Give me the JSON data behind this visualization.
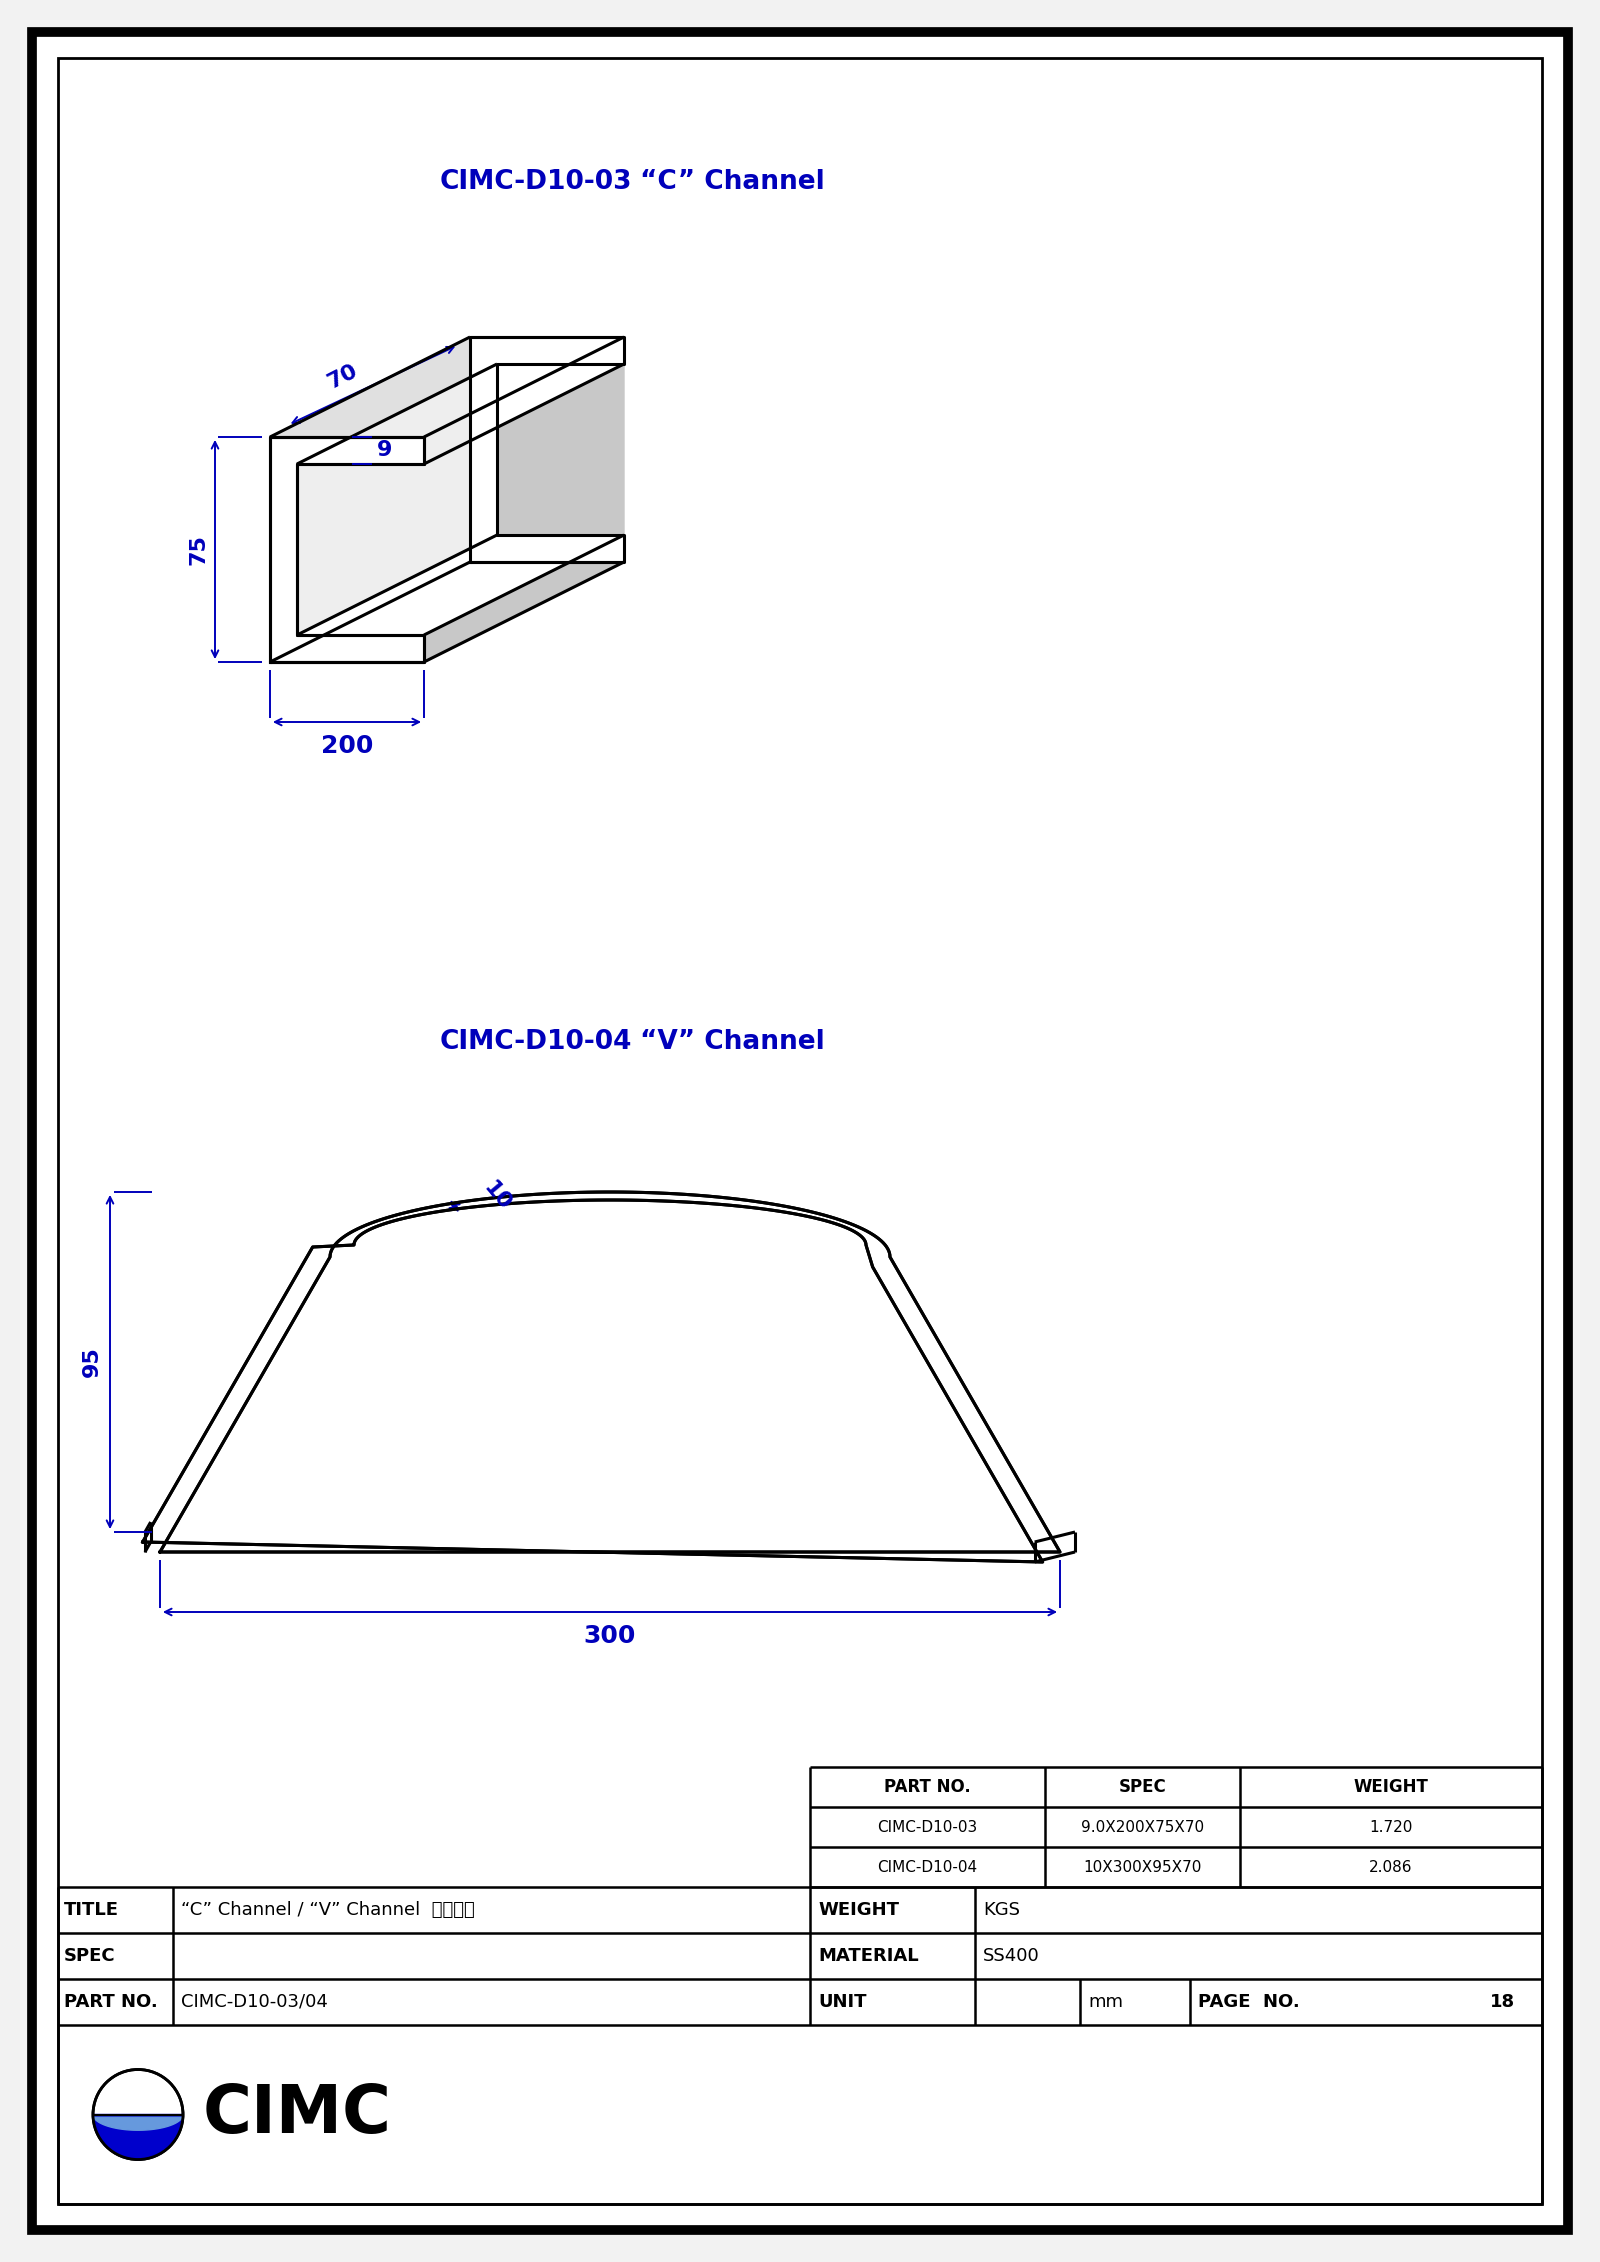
{
  "bg_color": "#f2f2f2",
  "paper_color": "#ffffff",
  "line_color": "#000000",
  "blue_color": "#0000bb",
  "title1_part": "CIMC-D10-03",
  "title1_label": "“C” Channel",
  "title2_part": "CIMC-D10-04",
  "title2_label": "“V” Channel",
  "dim_70": "70",
  "dim_9": "9",
  "dim_75": "75",
  "dim_200": "200",
  "dim_10": "10",
  "dim_95": "95",
  "dim_300": "300",
  "table_part_no": "PART NO.",
  "table_spec": "SPEC",
  "table_weight": "WEIGHT",
  "row1_part": "CIMC-D10-03",
  "row1_spec": "9.0X200X75X70",
  "row1_weight": "1.720",
  "row2_part": "CIMC-D10-04",
  "row2_spec": "10X300X95X70",
  "row2_weight": "2.086",
  "footer_title_label": "TITLE",
  "footer_title_val": "“C” Channel / “V” Channel  防撞槽鈢",
  "footer_spec_label": "SPEC",
  "footer_partno_label": "PART NO.",
  "footer_partno_val": "CIMC-D10-03/04",
  "footer_weight_label": "WEIGHT",
  "footer_weight_val": "KGS",
  "footer_material_label": "MATERIAL",
  "footer_material_val": "SS400",
  "footer_unit_label": "UNIT",
  "footer_unit_val": "mm",
  "footer_pageno_label": "PAGE  NO.",
  "footer_pageno_val": "18",
  "cimc_logo_text": "CIMC"
}
